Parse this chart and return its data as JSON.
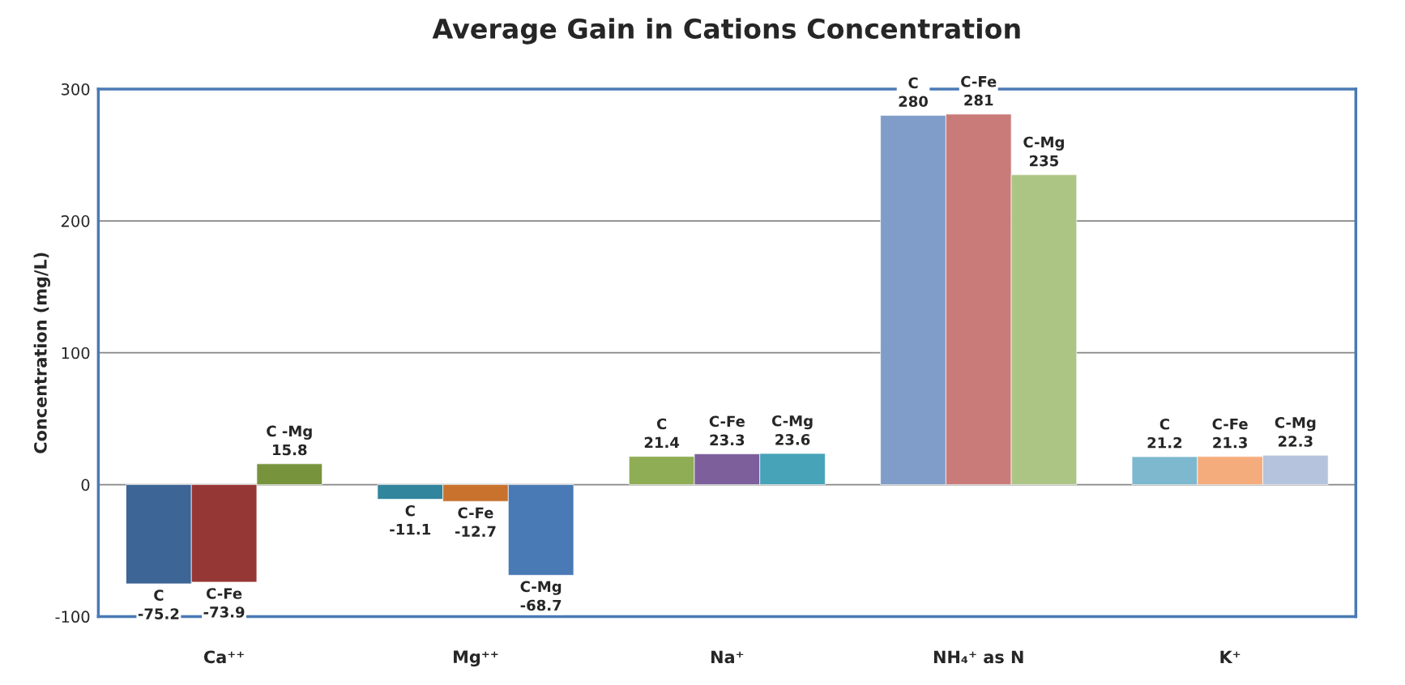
{
  "chart_data": {
    "type": "bar",
    "title": "Average Gain in Cations Concentration",
    "ylabel": "Concentration (mg/L)",
    "categories": [
      "Ca⁺⁺",
      "Mg⁺⁺",
      "Na⁺",
      "NH₄⁺ as N",
      "K⁺"
    ],
    "series": [
      {
        "colors": [
          "#3d6595",
          "#31859c",
          "#8fad54",
          "#7f9dc8",
          "#7db8cf"
        ],
        "values": [
          -75.2,
          -11.1,
          21.4,
          280,
          21.2
        ],
        "value_labels": [
          "C\n-75.2",
          "C\n-11.1",
          "C\n21.4",
          "C\n280",
          "C\n21.2"
        ]
      },
      {
        "colors": [
          "#953735",
          "#c8722d",
          "#7c5f9b",
          "#c97b7a",
          "#f5ac7c"
        ],
        "values": [
          -73.9,
          -12.7,
          23.3,
          281,
          21.3
        ],
        "value_labels": [
          "C-Fe\n-73.9",
          "C-Fe\n-12.7",
          "C-Fe\n23.3",
          "C-Fe\n281",
          "C-Fe\n21.3"
        ]
      },
      {
        "colors": [
          "#77933c",
          "#4a7ab5",
          "#46a3b8",
          "#adc584",
          "#b5c3dd"
        ],
        "values": [
          15.8,
          -68.7,
          23.6,
          235,
          22.3
        ],
        "value_labels": [
          "C -Mg\n15.8",
          "C-Mg\n-68.7",
          "C-Mg\n23.6",
          "C-Mg\n235",
          "C-Mg\n22.3"
        ]
      }
    ],
    "ylim": [
      -100,
      300
    ],
    "yticks": [
      -100,
      0,
      100,
      200,
      300
    ],
    "grid": "y",
    "legend": false
  }
}
